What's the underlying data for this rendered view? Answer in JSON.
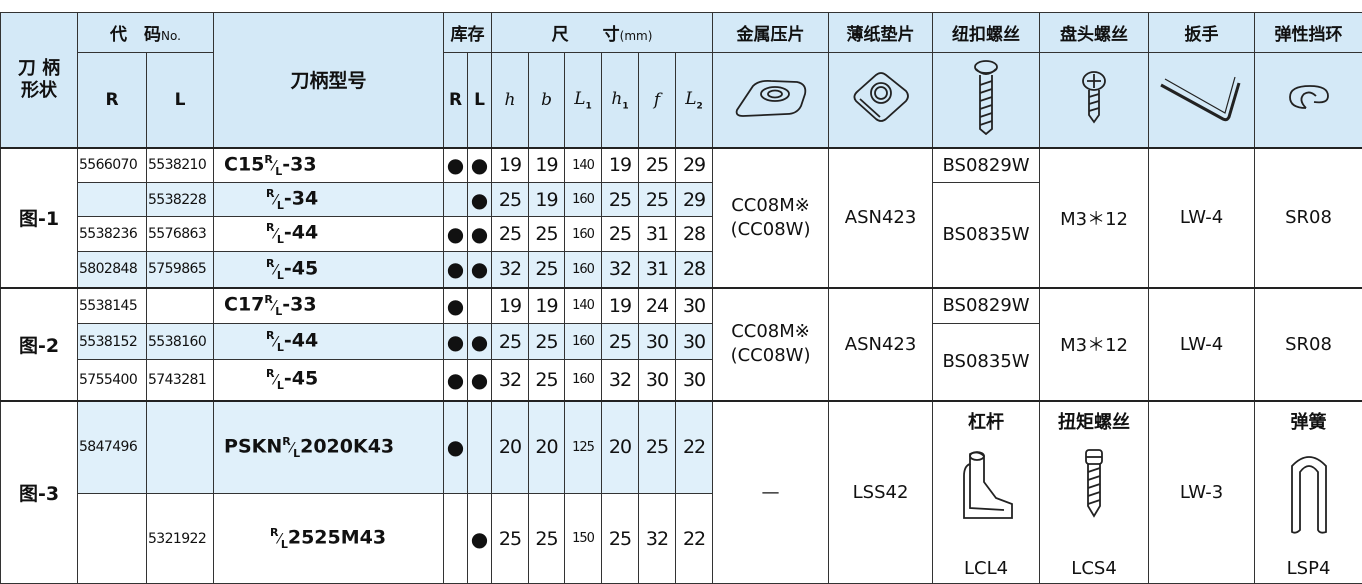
{
  "header": {
    "shank_shape": [
      "刀 柄",
      "形状"
    ],
    "code": {
      "main": "代　码",
      "suffix": "No."
    },
    "code_r": "R",
    "code_l": "L",
    "model": "刀柄型号",
    "stock": "库存",
    "stock_r": "R",
    "stock_l": "L",
    "dims": {
      "main": "尺　　寸",
      "suffix": "(mm)"
    },
    "dim_cols": [
      {
        "base": "h"
      },
      {
        "base": "b"
      },
      {
        "base": "L",
        "sub": "1"
      },
      {
        "base": "h",
        "sub": "1"
      },
      {
        "base": "f"
      },
      {
        "base": "L",
        "sub": "2"
      }
    ],
    "parts": [
      "金属压片",
      "薄纸垫片",
      "纽扣螺丝",
      "盘头螺丝",
      "扳手",
      "弹性挡环"
    ]
  },
  "groups": [
    {
      "label": "图-1",
      "rows": [
        {
          "code_r": "5566070",
          "code_l": "5538210",
          "model": {
            "prefix": "C15",
            "sup": "R",
            "sub": "L",
            "suffix": "-33"
          },
          "stock_r": "●",
          "stock_l": "●",
          "dims": [
            19,
            19,
            140,
            19,
            25,
            29
          ]
        },
        {
          "code_r": null,
          "code_l": "5538228",
          "model": {
            "sup": "R",
            "sub": "L",
            "suffix": "-34"
          },
          "stock_r": null,
          "stock_l": "●",
          "dims": [
            25,
            19,
            160,
            25,
            25,
            29
          ]
        },
        {
          "code_r": "5538236",
          "code_l": "5576863",
          "model": {
            "sup": "R",
            "sub": "L",
            "suffix": "-44"
          },
          "stock_r": "●",
          "stock_l": "●",
          "dims": [
            25,
            25,
            160,
            25,
            31,
            28
          ]
        },
        {
          "code_r": "5802848",
          "code_l": "5759865",
          "model": {
            "sup": "R",
            "sub": "L",
            "suffix": "-45"
          },
          "stock_r": "●",
          "stock_l": "●",
          "dims": [
            32,
            25,
            160,
            32,
            31,
            28
          ]
        }
      ],
      "clamp": [
        "CC08M※",
        "(CC08W)"
      ],
      "shim": "ASN423",
      "screws": [
        "BS0829W",
        "BS0835W"
      ],
      "pan_screw": "M3＊12",
      "wrench": "LW-4",
      "ring": "SR08"
    },
    {
      "label": "图-2",
      "rows": [
        {
          "code_r": "5538145",
          "code_l": null,
          "model": {
            "prefix": "C17",
            "sup": "R",
            "sub": "L",
            "suffix": "-33"
          },
          "stock_r": "●",
          "stock_l": null,
          "dims": [
            19,
            19,
            140,
            19,
            24,
            30
          ]
        },
        {
          "code_r": "5538152",
          "code_l": "5538160",
          "model": {
            "sup": "R",
            "sub": "L",
            "suffix": "-44"
          },
          "stock_r": "●",
          "stock_l": "●",
          "dims": [
            25,
            25,
            160,
            25,
            30,
            30
          ]
        },
        {
          "code_r": "5755400",
          "code_l": "5743281",
          "model": {
            "sup": "R",
            "sub": "L",
            "suffix": "-45"
          },
          "stock_r": "●",
          "stock_l": "●",
          "dims": [
            32,
            25,
            160,
            32,
            30,
            30
          ]
        }
      ],
      "clamp": [
        "CC08M※",
        "(CC08W)"
      ],
      "shim": "ASN423",
      "screws": [
        "BS0829W",
        "BS0835W"
      ],
      "pan_screw": "M3＊12",
      "wrench": "LW-4",
      "ring": "SR08"
    },
    {
      "label": "图-3",
      "rows": [
        {
          "code_r": "5847496",
          "code_l": null,
          "model": {
            "prefix": "PSKN",
            "sup": "R",
            "sub": "L",
            "suffix": "2020K43"
          },
          "stock_r": "●",
          "stock_l": null,
          "dims": [
            20,
            20,
            125,
            20,
            25,
            22
          ]
        },
        {
          "code_r": null,
          "code_l": "5321922",
          "model": {
            "sup": "R",
            "sub": "L",
            "suffix": "2525M43"
          },
          "stock_r": null,
          "stock_l": "●",
          "dims": [
            25,
            25,
            150,
            25,
            32,
            22
          ]
        }
      ],
      "clamp": "—",
      "shim": "LSS42",
      "lever": {
        "title": "杠杆",
        "code": "LCL4"
      },
      "torque_screw": {
        "title": "扭矩螺丝",
        "code": "LCS4"
      },
      "wrench": "LW-3",
      "spring": {
        "title": "弹簧",
        "code": "LSP4"
      }
    }
  ]
}
